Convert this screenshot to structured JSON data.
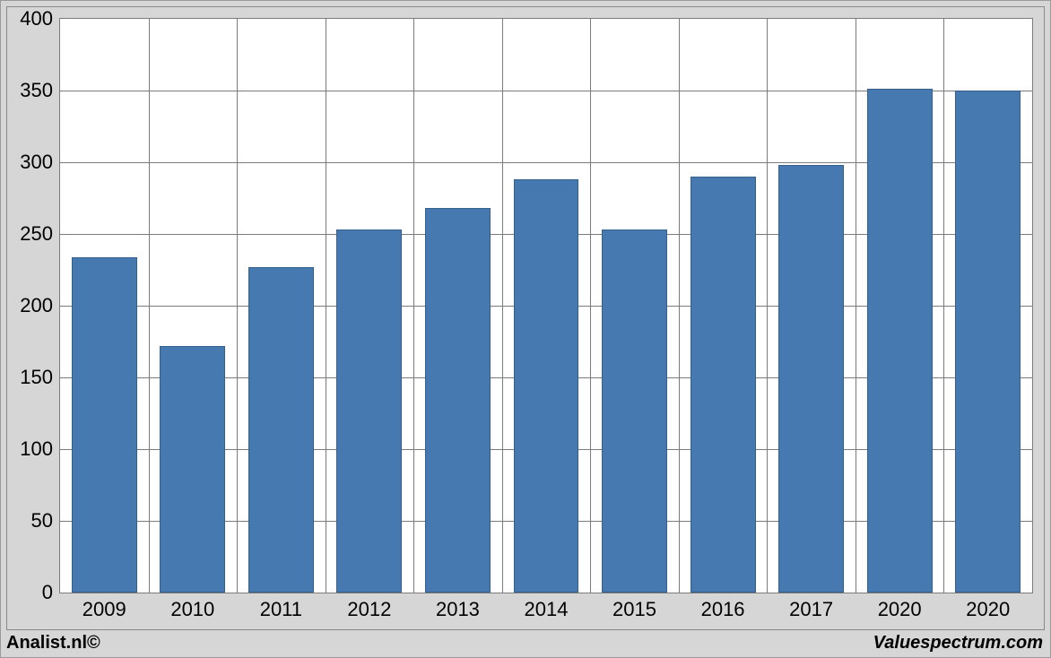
{
  "chart": {
    "type": "bar",
    "background_color": "#d6d6d6",
    "plot_background": "#ffffff",
    "border_color": "#7b7b7b",
    "grid_color": "#7b7b7b",
    "bar_color": "#4579b0",
    "bar_border_color": "#35608c",
    "bar_width_ratio": 0.74,
    "ylim": [
      0,
      400
    ],
    "ytick_step": 50,
    "yticks": [
      0,
      50,
      100,
      150,
      200,
      250,
      300,
      350,
      400
    ],
    "categories": [
      "2009",
      "2010",
      "2011",
      "2012",
      "2013",
      "2014",
      "2015",
      "2016",
      "2017",
      "2020",
      "2020"
    ],
    "values": [
      234,
      172,
      227,
      253,
      268,
      288,
      253,
      290,
      298,
      351,
      350
    ],
    "label_fontsize": 22
  },
  "footer": {
    "left": "Analist.nl©",
    "right": "Valuespectrum.com"
  }
}
